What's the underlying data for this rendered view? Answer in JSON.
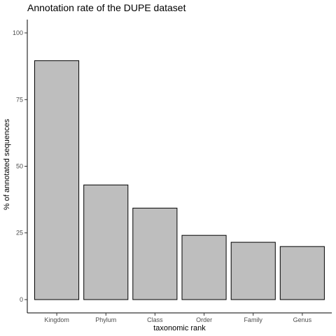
{
  "chart_data": {
    "type": "bar",
    "title": "Annotation rate of the DUPE dataset",
    "xlabel": "taxonomic rank",
    "ylabel": "% of annotated sequences",
    "categories": [
      "Kingdom",
      "Phylum",
      "Class",
      "Order",
      "Family",
      "Genus"
    ],
    "values": [
      89.6,
      43.0,
      34.3,
      24.1,
      21.5,
      19.9
    ],
    "ylim": [
      -5,
      105
    ],
    "yticks": [
      0,
      25,
      50,
      75,
      100
    ],
    "grid": false,
    "bar_fill": "#bebebe",
    "bar_stroke": "#000000"
  }
}
